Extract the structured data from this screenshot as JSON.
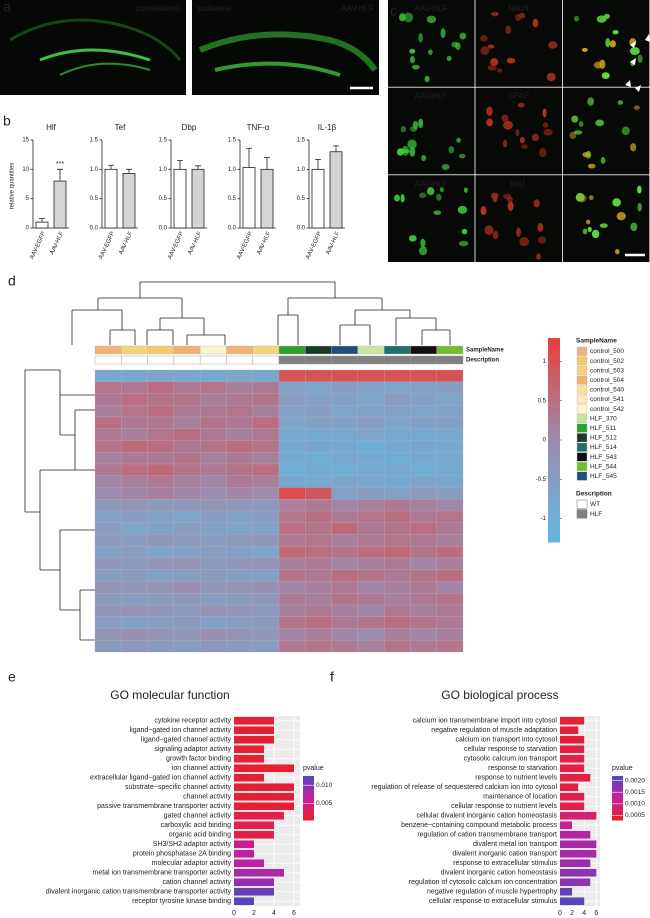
{
  "panel_labels": [
    "a",
    "b",
    "c",
    "d",
    "e",
    "f"
  ],
  "images": {
    "a": {
      "left": "contralateral",
      "right": "ipsilateral",
      "marker": "AAV-HLF"
    },
    "c": {
      "rows": [
        [
          "AAV-HLF",
          "NeuN"
        ],
        [
          "AAV-HLF",
          "GFAP"
        ],
        [
          "AAV-HLF",
          "Iba1"
        ]
      ]
    }
  },
  "chart_data": [
    {
      "type": "bar",
      "title": "Hlf",
      "ylabel": "relative quantities",
      "categories": [
        "AAV-EGFP",
        "AAV-HLF"
      ],
      "values": [
        1,
        8
      ],
      "errors": [
        0.6,
        2
      ],
      "colors": [
        "#ffffff",
        "#d4d4d4"
      ],
      "ylim": [
        0,
        15
      ],
      "yticks": [
        0,
        5,
        10,
        15
      ],
      "annotation": "***"
    },
    {
      "type": "bar",
      "title": "Tef",
      "categories": [
        "AAV-EGFP",
        "AAV-HLF"
      ],
      "values": [
        1.0,
        0.93
      ],
      "errors": [
        0.07,
        0.07
      ],
      "colors": [
        "#ffffff",
        "#d4d4d4"
      ],
      "ylim": [
        0,
        1.5
      ],
      "yticks": [
        {
          "value": 0,
          "label": "0.0"
        },
        0.5,
        {
          "value": 1,
          "label": "1.0"
        },
        1.5
      ]
    },
    {
      "type": "bar",
      "title": "Dbp",
      "categories": [
        "AAV-EGFP",
        "AAV-HLF"
      ],
      "values": [
        1.0,
        1.0
      ],
      "errors": [
        0.15,
        0.06
      ],
      "colors": [
        "#ffffff",
        "#d4d4d4"
      ],
      "ylim": [
        0,
        1.5
      ],
      "yticks": [
        {
          "value": 0,
          "label": "0.0"
        },
        0.5,
        {
          "value": 1,
          "label": "1.0"
        },
        1.5
      ]
    },
    {
      "type": "bar",
      "title": "TNF-α",
      "categories": [
        "AAV-EGFP",
        "AAV-HLF"
      ],
      "values": [
        1.03,
        1.0
      ],
      "errors": [
        0.33,
        0.2
      ],
      "colors": [
        "#ffffff",
        "#d4d4d4"
      ],
      "ylim": [
        0,
        1.5
      ],
      "yticks": [
        {
          "value": 0,
          "label": "0.0"
        },
        0.5,
        {
          "value": 1,
          "label": "1.0"
        },
        1.5
      ]
    },
    {
      "type": "bar",
      "title": "IL-1β",
      "categories": [
        "AAV-EGFP",
        "AAV-HLF"
      ],
      "values": [
        1.0,
        1.3
      ],
      "errors": [
        0.17,
        0.1
      ],
      "colors": [
        "#ffffff",
        "#d4d4d4"
      ],
      "ylim": [
        0,
        1.5
      ],
      "yticks": [
        {
          "value": 0,
          "label": "0.0"
        },
        0.5,
        {
          "value": 1,
          "label": "1.0"
        },
        1.5
      ]
    },
    {
      "type": "heatmap",
      "annotation_rows": [
        "SampleName",
        "Description"
      ],
      "column_colors": [
        "#f2b27c",
        "#f7d27a",
        "#f5c86b",
        "#f0b270",
        "#fdf3cc",
        "#f2b27c",
        "#f7d27a",
        "#2ca02c",
        "#1a3a2a",
        "#1f4e79",
        "#c8e6a0",
        "#1f6f6a",
        "#111111",
        "#6fbf2a"
      ],
      "column_description_colors": [
        "#ffffff",
        "#ffffff",
        "#ffffff",
        "#ffffff",
        "#ffffff",
        "#ffffff",
        "#ffffff",
        "#808080",
        "#808080",
        "#808080",
        "#808080",
        "#808080",
        "#808080",
        "#808080"
      ],
      "samples": [
        {
          "name": "control_500",
          "color": "#f2b27c"
        },
        {
          "name": "control_502",
          "color": "#f5c86b"
        },
        {
          "name": "control_503",
          "color": "#f7d27a"
        },
        {
          "name": "control_504",
          "color": "#f0b270"
        },
        {
          "name": "control_540",
          "color": "#fbe39a"
        },
        {
          "name": "control_541",
          "color": "#fde8c0"
        },
        {
          "name": "control_542",
          "color": "#fdf3cc"
        },
        {
          "name": "HLF_370",
          "color": "#c8e6a0"
        },
        {
          "name": "HLF_511",
          "color": "#2ca02c"
        },
        {
          "name": "HLF_512",
          "color": "#1a3a2a"
        },
        {
          "name": "HLF_514",
          "color": "#1f6f6a"
        },
        {
          "name": "HLF_543",
          "color": "#111111"
        },
        {
          "name": "HLF_544",
          "color": "#6fbf2a"
        },
        {
          "name": "HLF_545",
          "color": "#1f4e79"
        }
      ],
      "descriptions": [
        {
          "name": "WT",
          "color": "#ffffff"
        },
        {
          "name": "HLF",
          "color": "#808080"
        }
      ],
      "colors": [
        "#62b8e0",
        "#9c8cae",
        "#e8403a"
      ],
      "zlim": [
        -1.3,
        1.3
      ],
      "zticks": [
        1,
        0.5,
        0,
        -0.5,
        -1
      ],
      "values": [
        [
          -0.8,
          -0.8,
          -0.7,
          -0.8,
          -0.8,
          -0.7,
          -0.8,
          1.0,
          1.0,
          1.0,
          1.0,
          1.0,
          1.0,
          1.0
        ],
        [
          0.4,
          0.3,
          0.5,
          0.3,
          0.4,
          0.2,
          0.3,
          -0.6,
          -0.7,
          -0.5,
          -0.6,
          -0.7,
          -0.6,
          -0.5
        ],
        [
          0.3,
          0.5,
          0.4,
          0.4,
          0.2,
          0.3,
          0.4,
          -0.5,
          -0.6,
          -0.6,
          -0.7,
          -0.5,
          -0.6,
          -0.7
        ],
        [
          0.2,
          0.4,
          0.5,
          0.3,
          0.3,
          0.4,
          0.2,
          -0.6,
          -0.5,
          -0.7,
          -0.6,
          -0.6,
          -0.7,
          -0.6
        ],
        [
          0.5,
          0.3,
          0.3,
          0.2,
          0.4,
          0.3,
          0.5,
          -0.7,
          -0.6,
          -0.6,
          -0.5,
          -0.7,
          -0.6,
          -0.6
        ],
        [
          0.3,
          0.2,
          0.4,
          0.5,
          0.3,
          0.2,
          0.3,
          -0.8,
          -0.9,
          -0.8,
          -0.7,
          -0.8,
          -0.9,
          -0.8
        ],
        [
          0.4,
          0.6,
          0.5,
          0.3,
          0.4,
          0.5,
          0.4,
          -0.9,
          -0.8,
          -0.9,
          -1.0,
          -0.9,
          -0.8,
          -0.9
        ],
        [
          0.2,
          0.3,
          0.3,
          0.4,
          0.2,
          0.3,
          0.2,
          -0.9,
          -1.0,
          -0.8,
          -0.9,
          -1.0,
          -0.9,
          -0.8
        ],
        [
          0.3,
          0.5,
          0.6,
          0.4,
          0.3,
          0.4,
          0.5,
          -1.0,
          -0.9,
          -1.0,
          -0.9,
          -0.8,
          -1.0,
          -0.9
        ],
        [
          0.1,
          0.2,
          0.3,
          0.2,
          0.1,
          0.3,
          0.2,
          -0.8,
          -0.9,
          -0.7,
          -0.8,
          -0.9,
          -0.7,
          -0.8
        ],
        [
          0.0,
          0.1,
          0.2,
          0.1,
          0.0,
          0.1,
          0.0,
          1.1,
          0.9,
          -0.6,
          -0.5,
          -0.6,
          -0.4,
          -0.5
        ],
        [
          -0.3,
          -0.2,
          -0.4,
          -0.3,
          -0.2,
          -0.3,
          -0.4,
          0.2,
          0.3,
          0.1,
          0.2,
          0.3,
          0.2,
          0.1
        ],
        [
          -0.6,
          -0.5,
          -0.6,
          -0.7,
          -0.5,
          -0.6,
          -0.5,
          0.4,
          0.5,
          0.3,
          0.4,
          0.5,
          0.3,
          0.4
        ],
        [
          -0.5,
          -0.7,
          -0.6,
          -0.5,
          -0.6,
          -0.7,
          -0.6,
          0.5,
          0.4,
          0.6,
          0.3,
          0.4,
          0.5,
          0.3
        ],
        [
          -0.4,
          -0.5,
          -0.3,
          -0.4,
          -0.5,
          -0.4,
          -0.3,
          0.3,
          0.4,
          0.2,
          0.3,
          0.4,
          0.3,
          0.2
        ],
        [
          -0.6,
          -0.5,
          -0.7,
          -0.6,
          -0.5,
          -0.6,
          -0.7,
          0.6,
          0.5,
          0.4,
          0.5,
          0.6,
          0.4,
          0.5
        ],
        [
          -0.3,
          -0.4,
          -0.3,
          -0.2,
          -0.4,
          -0.3,
          -0.2,
          0.2,
          0.3,
          0.1,
          0.2,
          0.3,
          0.1,
          0.2
        ],
        [
          -0.5,
          -0.4,
          -0.6,
          -0.5,
          -0.4,
          -0.5,
          -0.6,
          0.4,
          0.3,
          0.5,
          0.4,
          0.3,
          0.4,
          0.5
        ],
        [
          -0.2,
          -0.3,
          -0.2,
          -0.1,
          -0.3,
          -0.2,
          -0.1,
          0.1,
          0.2,
          0.3,
          0.1,
          0.2,
          0.3,
          0.1
        ],
        [
          -0.4,
          -0.5,
          -0.4,
          -0.3,
          -0.5,
          -0.4,
          -0.3,
          0.3,
          0.2,
          0.4,
          0.3,
          0.2,
          0.3,
          0.4
        ],
        [
          -0.3,
          -0.2,
          -0.3,
          -0.4,
          -0.2,
          -0.3,
          -0.4,
          0.2,
          0.3,
          0.2,
          0.1,
          0.3,
          0.2,
          0.3
        ],
        [
          -0.5,
          -0.6,
          -0.5,
          -0.4,
          -0.6,
          -0.5,
          -0.4,
          0.4,
          0.5,
          0.3,
          0.4,
          0.5,
          0.4,
          0.3
        ],
        [
          -0.2,
          -0.1,
          -0.2,
          -0.3,
          -0.1,
          -0.2,
          -0.3,
          0.1,
          0.2,
          0.1,
          0.0,
          0.2,
          0.1,
          0.2
        ],
        [
          -0.4,
          -0.3,
          -0.4,
          -0.5,
          -0.3,
          -0.4,
          -0.5,
          0.3,
          0.4,
          0.3,
          0.2,
          0.4,
          0.3,
          0.4
        ]
      ]
    },
    {
      "type": "go",
      "title": "GO molecular function",
      "legend_title": "pvalue",
      "categories": [
        "cytokine receptor activity",
        "ligand−gated ion channel activity",
        "ligand−gated channel activity",
        "signaling adaptor activity",
        "growth factor binding",
        "ion channel activity",
        "extracellular ligand−gated ion channel activity",
        "substrate−specific channel activity",
        "channel activity",
        "passive transmembrane transporter activity",
        "gated channel activity",
        "carboxylic acid binding",
        "organic acid binding",
        "SH3/SH2 adaptor activity",
        "protein phosphatase 2A binding",
        "molecular adaptor activity",
        "metal ion transmembrane transporter activity",
        "cation channel activity",
        "divalent inorganic cation transmembrane transporter activity",
        "receptor tyrosine kinase binding"
      ],
      "values": [
        4,
        4,
        4,
        3,
        3,
        6,
        3,
        6,
        6,
        6,
        5,
        4,
        4,
        2,
        2,
        3,
        5,
        4,
        4,
        2
      ],
      "pvalues": [
        0.001,
        0.001,
        0.001,
        0.001,
        0.001,
        0.001,
        0.001,
        0.001,
        0.001,
        0.001,
        0.002,
        0.002,
        0.002,
        0.006,
        0.007,
        0.007,
        0.008,
        0.009,
        0.011,
        0.012
      ],
      "color_scale": [
        "#e8202a",
        "#c81e9e",
        "#4a4ac0"
      ],
      "clim": [
        0.0005,
        0.0125
      ],
      "cticks": [
        {
          "value": 0.01,
          "label": "0.010"
        },
        0.005
      ],
      "xlim": [
        0,
        6.6
      ],
      "xticks": [
        0,
        2,
        4,
        6
      ]
    },
    {
      "type": "go",
      "title": "GO biological process",
      "legend_title": "pvalue",
      "categories": [
        "calcium ion transmembrane import into cytosol",
        "negative regulation of muscle adaptation",
        "calcium ion transport into cytosol",
        "cellular response to starvation",
        "cytosolic calcium ion transport",
        "response to starvation",
        "response to nutrient levels",
        "regulation of release of sequestered calcium ion into cytosol",
        "maintenance of location",
        "cellular response to nutrient levels",
        "cellular divalent inorganic cation homeostasis",
        "benzene−containing compound metabolic process",
        "regulation of cation transmembrane transport",
        "divalent metal ion transport",
        "divalent inorganic cation transport",
        "response to extracellular stimulus",
        "divalent inorganic cation homeostasis",
        "regulation of cytosolic calcium ion concentration",
        "negative regulation of muscle hypertrophy",
        "cellular response to extracellular stimulus"
      ],
      "values": [
        4,
        3,
        4,
        4,
        4,
        4,
        5,
        3,
        4,
        4,
        6,
        2,
        5,
        6,
        6,
        5,
        6,
        5,
        2,
        4
      ],
      "pvalues": [
        0.0004,
        0.0004,
        0.0004,
        0.0005,
        0.0005,
        0.0005,
        0.0005,
        0.0005,
        0.0006,
        0.0006,
        0.0009,
        0.0012,
        0.0014,
        0.0015,
        0.0015,
        0.0016,
        0.0017,
        0.0017,
        0.002,
        0.0021
      ],
      "color_scale": [
        "#e8202a",
        "#c81e9e",
        "#4a4ac0"
      ],
      "clim": [
        0.0003,
        0.0022
      ],
      "cticks": [
        {
          "value": 0.002,
          "label": "0.0020"
        },
        {
          "value": 0.0015,
          "label": "0.0015"
        },
        {
          "value": 0.001,
          "label": "0.0010"
        },
        {
          "value": 0.0005,
          "label": "0.0005"
        }
      ],
      "xlim": [
        0,
        6.6
      ],
      "xticks": [
        0,
        2,
        4,
        6
      ]
    }
  ]
}
